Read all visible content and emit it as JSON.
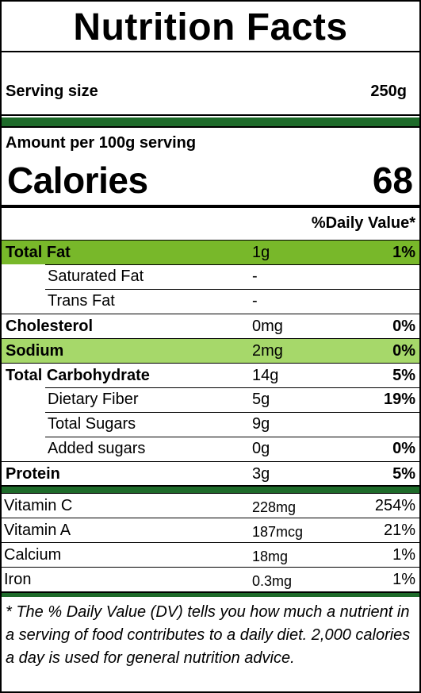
{
  "title": "Nutrition Facts",
  "serving": {
    "label": "Serving size",
    "value": "250g"
  },
  "amount_per": "Amount per 100g serving",
  "calories": {
    "label": "Calories",
    "value": "68"
  },
  "daily_value_header": "%Daily Value*",
  "nutrients": [
    {
      "name": "Total Fat",
      "amount": "1g",
      "dv": "1%"
    },
    {
      "name": "Saturated Fat",
      "amount": "-",
      "dv": ""
    },
    {
      "name": "Trans Fat",
      "amount": "-",
      "dv": ""
    },
    {
      "name": "Cholesterol",
      "amount": "0mg",
      "dv": "0%"
    },
    {
      "name": "Sodium",
      "amount": "2mg",
      "dv": "0%"
    },
    {
      "name": "Total Carbohydrate",
      "amount": "14g",
      "dv": "5%"
    },
    {
      "name": "Dietary Fiber",
      "amount": "5g",
      "dv": "19%"
    },
    {
      "name": "Total Sugars",
      "amount": "9g",
      "dv": ""
    },
    {
      "name": "Added sugars",
      "amount": "0g",
      "dv": "0%"
    },
    {
      "name": "Protein",
      "amount": "3g",
      "dv": "5%"
    }
  ],
  "vitamins": [
    {
      "name": "Vitamin C",
      "amount": "228mg",
      "dv": "254%"
    },
    {
      "name": "Vitamin A",
      "amount": "187mcg",
      "dv": "21%"
    },
    {
      "name": "Calcium",
      "amount": "18mg",
      "dv": "1%"
    },
    {
      "name": "Iron",
      "amount": "0.3mg",
      "dv": "1%"
    }
  ],
  "footnote": "* The % Daily Value (DV) tells you how much a nutrient in a serving of food contributes to a daily diet. 2,000 calories a day is used for general nutrition advice.",
  "colors": {
    "dark_green_bar": "#1e6b2a",
    "highlight_fat": "#78b82a",
    "highlight_sodium": "#a6d86a"
  }
}
